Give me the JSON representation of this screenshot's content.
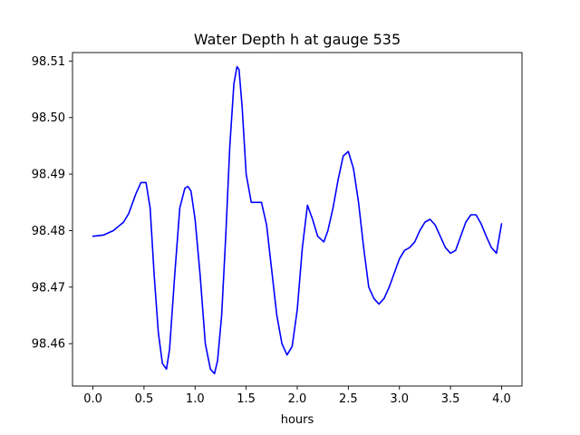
{
  "chart_data": {
    "type": "line",
    "title": "Water Depth h at gauge 535",
    "xlabel": "hours",
    "ylabel": "",
    "xlim": [
      -0.2,
      4.2
    ],
    "ylim": [
      98.4525,
      98.5115
    ],
    "x_ticks": [
      0.0,
      0.5,
      1.0,
      1.5,
      2.0,
      2.5,
      3.0,
      3.5,
      4.0
    ],
    "x_tick_labels": [
      "0.0",
      "0.5",
      "1.0",
      "1.5",
      "2.0",
      "2.5",
      "3.0",
      "3.5",
      "4.0"
    ],
    "y_ticks": [
      98.46,
      98.47,
      98.48,
      98.49,
      98.5,
      98.51
    ],
    "y_tick_labels": [
      "98.46",
      "98.47",
      "98.48",
      "98.49",
      "98.50",
      "98.51"
    ],
    "grid": false,
    "series": [
      {
        "color": "#0000ff",
        "x": [
          0.0,
          0.1,
          0.2,
          0.3,
          0.35,
          0.42,
          0.47,
          0.52,
          0.56,
          0.6,
          0.64,
          0.68,
          0.72,
          0.75,
          0.8,
          0.85,
          0.9,
          0.93,
          0.96,
          1.0,
          1.05,
          1.1,
          1.15,
          1.19,
          1.22,
          1.26,
          1.3,
          1.34,
          1.38,
          1.41,
          1.43,
          1.46,
          1.5,
          1.55,
          1.6,
          1.65,
          1.7,
          1.75,
          1.8,
          1.85,
          1.9,
          1.95,
          2.0,
          2.05,
          2.1,
          2.15,
          2.2,
          2.26,
          2.3,
          2.35,
          2.4,
          2.45,
          2.5,
          2.55,
          2.6,
          2.65,
          2.7,
          2.75,
          2.8,
          2.85,
          2.9,
          2.94,
          3.0,
          3.05,
          3.1,
          3.15,
          3.2,
          3.25,
          3.3,
          3.35,
          3.4,
          3.45,
          3.5,
          3.55,
          3.6,
          3.65,
          3.7,
          3.75,
          3.8,
          3.85,
          3.9,
          3.95,
          4.0
        ],
        "y": [
          98.479,
          98.4792,
          98.48,
          98.4815,
          98.483,
          98.4865,
          98.4885,
          98.4885,
          98.484,
          98.472,
          98.462,
          98.4565,
          98.4555,
          98.459,
          98.472,
          98.484,
          98.4875,
          98.4878,
          98.487,
          98.482,
          98.472,
          98.46,
          98.4555,
          98.4547,
          98.457,
          98.465,
          98.479,
          98.495,
          98.506,
          98.509,
          98.5085,
          98.502,
          98.49,
          98.485,
          98.485,
          98.485,
          98.481,
          98.473,
          98.465,
          98.46,
          98.458,
          98.4595,
          98.466,
          98.477,
          98.4845,
          98.482,
          98.479,
          98.478,
          98.48,
          98.484,
          98.489,
          98.4932,
          98.494,
          98.491,
          98.485,
          98.477,
          98.47,
          98.468,
          98.467,
          98.468,
          98.47,
          98.472,
          98.475,
          98.4765,
          98.477,
          98.478,
          98.48,
          98.4815,
          98.482,
          98.481,
          98.479,
          98.477,
          98.476,
          98.4765,
          98.479,
          98.4815,
          98.4828,
          98.4828,
          98.4812,
          98.479,
          98.477,
          98.476,
          98.4812
        ]
      }
    ]
  }
}
